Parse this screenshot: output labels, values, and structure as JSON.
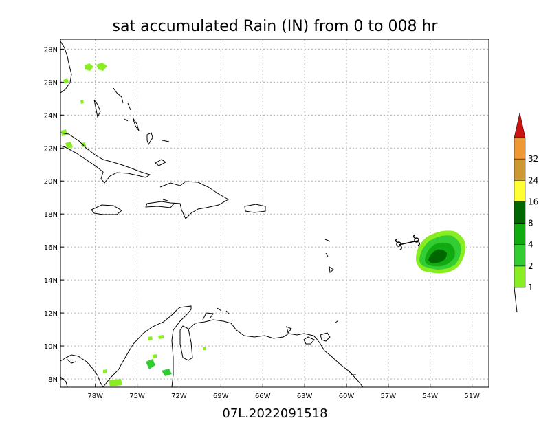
{
  "title": "sat accumulated Rain (IN) from 0 to 008 hr",
  "footer": "07L.2022091518",
  "lat_labels": [
    "28N",
    "26N",
    "24N",
    "22N",
    "20N",
    "18N",
    "16N",
    "14N",
    "12N",
    "10N",
    "8N"
  ],
  "lat_values": [
    28,
    26,
    24,
    22,
    20,
    18,
    16,
    14,
    12,
    10,
    8
  ],
  "lon_labels": [
    "78W",
    "75W",
    "72W",
    "69W",
    "66W",
    "63W",
    "60W",
    "57W",
    "54W",
    "51W"
  ],
  "lon_values": [
    -78,
    -75,
    -72,
    -69,
    -66,
    -63,
    -60,
    -57,
    -54,
    -51
  ],
  "extent": {
    "lon_min": -80.5,
    "lon_max": -49.8,
    "lat_min": 7.5,
    "lat_max": 28.6
  },
  "colorbar": {
    "labels": [
      "1",
      "2",
      "4",
      "8",
      "16",
      "24",
      "32"
    ],
    "colors": [
      "#88ee22",
      "#33cc33",
      "#11aa11",
      "#006600",
      "#ffff33",
      "#cc9933",
      "#ee9933",
      "#cc1111"
    ]
  },
  "colors": {
    "coast": "#000000",
    "grid": "#b0b0b0"
  }
}
